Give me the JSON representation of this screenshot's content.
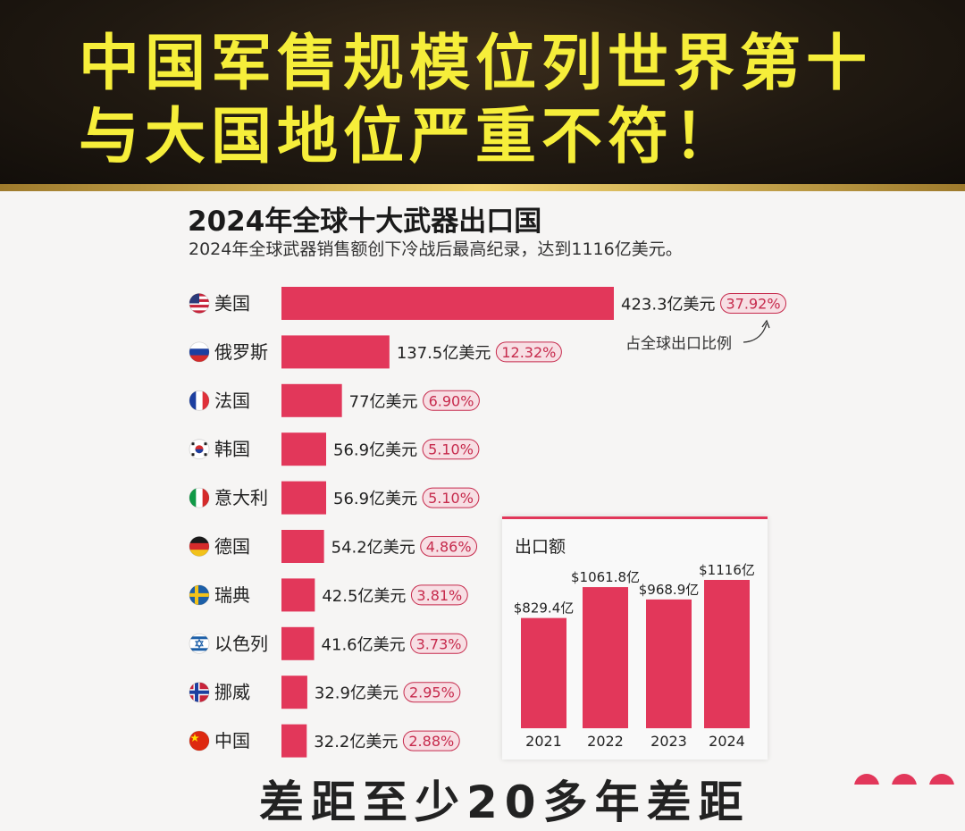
{
  "headline": {
    "line1": "中国军售规模位列世界第十",
    "line2": "与大国地位严重不符！"
  },
  "chart_data": [
    {
      "type": "bar",
      "orientation": "horizontal",
      "title": "2024年全球十大武器出口国",
      "subtitle": "2024年全球武器销售额创下冷战后最高纪录，达到1116亿美元。",
      "annotation": "占全球出口比例",
      "unit": "亿美元",
      "categories": [
        "美国",
        "俄罗斯",
        "法国",
        "韩国",
        "意大利",
        "德国",
        "瑞典",
        "以色列",
        "挪威",
        "中国"
      ],
      "values": [
        423.3,
        137.5,
        77,
        56.9,
        56.9,
        54.2,
        42.5,
        41.6,
        32.9,
        32.2
      ],
      "value_labels": [
        "423.3亿美元",
        "137.5亿美元",
        "77亿美元",
        "56.9亿美元",
        "56.9亿美元",
        "54.2亿美元",
        "42.5亿美元",
        "41.6亿美元",
        "32.9亿美元",
        "32.2亿美元"
      ],
      "share_labels": [
        "37.92%",
        "12.32%",
        "6.90%",
        "5.10%",
        "5.10%",
        "4.86%",
        "3.81%",
        "3.73%",
        "2.95%",
        "2.88%"
      ],
      "flag_icons": [
        "us-flag-icon",
        "russia-flag-icon",
        "france-flag-icon",
        "korea-flag-icon",
        "italy-flag-icon",
        "germany-flag-icon",
        "sweden-flag-icon",
        "israel-flag-icon",
        "norway-flag-icon",
        "china-flag-icon"
      ],
      "bar_color": "#e2375a",
      "share_badge_color": "#f7dfe4"
    },
    {
      "type": "bar",
      "title": "出口额",
      "categories": [
        "2021",
        "2022",
        "2023",
        "2024"
      ],
      "values": [
        829.4,
        1061.8,
        968.9,
        1116
      ],
      "value_labels": [
        "$829.4亿",
        "$1061.8亿",
        "$968.9亿",
        "$1116亿"
      ],
      "bar_color": "#e2375a"
    }
  ],
  "bottom_text": "差距至少20多年差距"
}
